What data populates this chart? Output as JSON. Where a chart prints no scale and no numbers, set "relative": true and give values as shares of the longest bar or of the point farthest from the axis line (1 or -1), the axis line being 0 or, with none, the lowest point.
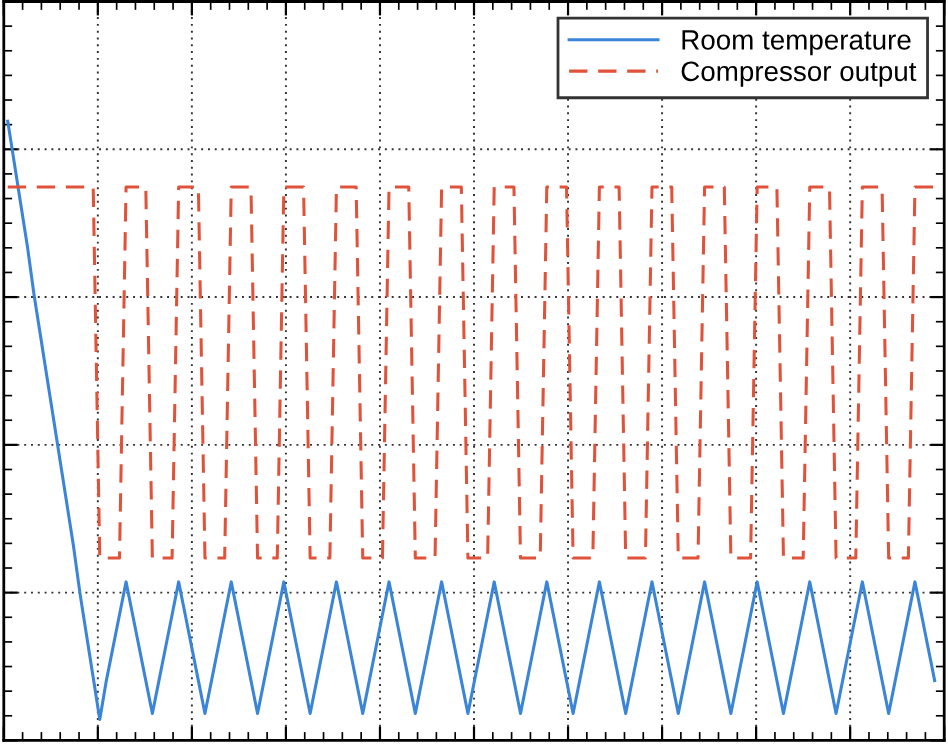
{
  "chart_data": {
    "type": "line",
    "relative": true,
    "tick_labels": false,
    "grid": true,
    "legend": "top right",
    "marker": "none",
    "categories": [
      null,
      null,
      null,
      null,
      null,
      null,
      null,
      null,
      null,
      null,
      null,
      null,
      null,
      null,
      null,
      null,
      null,
      null,
      null,
      null,
      null,
      null,
      null,
      null,
      null,
      null,
      null,
      null,
      null,
      null,
      null,
      null,
      null,
      null,
      null,
      null,
      null,
      null,
      null,
      null,
      null,
      null,
      null,
      null,
      null,
      null,
      null,
      null,
      null,
      null,
      null,
      null,
      null,
      null,
      null,
      null,
      null,
      null,
      null,
      null,
      null,
      null,
      null,
      null,
      null,
      null,
      null,
      null,
      null,
      null,
      null,
      null,
      null,
      null,
      null,
      null,
      null,
      null,
      null,
      null,
      null,
      null,
      null,
      null,
      null,
      null,
      null,
      null,
      null,
      null,
      null,
      null,
      null,
      null,
      null,
      null,
      null,
      null,
      null,
      null,
      null,
      null,
      null,
      null,
      null,
      null,
      null,
      null,
      null,
      null,
      null,
      null,
      null,
      null,
      null,
      null,
      null,
      null,
      null,
      null,
      null,
      null,
      null,
      null,
      null,
      null,
      null,
      null,
      null,
      null,
      null,
      null,
      null,
      null,
      null,
      null,
      null,
      null,
      null,
      null,
      null,
      null
    ],
    "series": [
      {
        "name": "Room temperature",
        "color": "#3a85d8",
        "line_style": "solid",
        "values": [
          1,
          0.93,
          0.86,
          0.79,
          0.71,
          0.64,
          0.57,
          0.5,
          0.43,
          0.36,
          0.29,
          0.21,
          0.14,
          0.07,
          0,
          0.065,
          0.12,
          0.175,
          0.23,
          0.175,
          0.12,
          0.065,
          0.01,
          0.065,
          0.12,
          0.175,
          0.23,
          0.175,
          0.12,
          0.065,
          0.01,
          0.065,
          0.12,
          0.175,
          0.23,
          0.175,
          0.12,
          0.065,
          0.01,
          0.065,
          0.12,
          0.175,
          0.23,
          0.175,
          0.12,
          0.065,
          0.01,
          0.065,
          0.12,
          0.175,
          0.23,
          0.175,
          0.12,
          0.065,
          0.01,
          0.065,
          0.12,
          0.175,
          0.23,
          0.175,
          0.12,
          0.065,
          0.01,
          0.065,
          0.12,
          0.175,
          0.23,
          0.175,
          0.12,
          0.065,
          0.01,
          0.065,
          0.12,
          0.175,
          0.23,
          0.175,
          0.12,
          0.065,
          0.01,
          0.065,
          0.12,
          0.175,
          0.23,
          0.175,
          0.12,
          0.065,
          0.01,
          0.065,
          0.12,
          0.175,
          0.23,
          0.175,
          0.12,
          0.065,
          0.01,
          0.065,
          0.12,
          0.175,
          0.23,
          0.175,
          0.12,
          0.065,
          0.01,
          0.065,
          0.12,
          0.175,
          0.23,
          0.175,
          0.12,
          0.065,
          0.01,
          0.065,
          0.12,
          0.175,
          0.23,
          0.175,
          0.12,
          0.065,
          0.01,
          0.065,
          0.12,
          0.175,
          0.23,
          0.175,
          0.12,
          0.065,
          0.01,
          0.065,
          0.12,
          0.175,
          0.23,
          0.175,
          0.12,
          0.065,
          0.01,
          0.065,
          0.12,
          0.175,
          0.23,
          0.175,
          0.12,
          0.065
        ]
      },
      {
        "name": "Compressor output",
        "color": "#e0533a",
        "line_style": "dashed",
        "values": [
          0.89,
          0.89,
          0.89,
          0.89,
          0.89,
          0.89,
          0.89,
          0.89,
          0.89,
          0.89,
          0.89,
          0.89,
          0.89,
          0.89,
          0.27,
          0.27,
          0.27,
          0.27,
          0.89,
          0.89,
          0.89,
          0.89,
          0.27,
          0.27,
          0.27,
          0.27,
          0.89,
          0.89,
          0.89,
          0.89,
          0.27,
          0.27,
          0.27,
          0.27,
          0.89,
          0.89,
          0.89,
          0.89,
          0.27,
          0.27,
          0.27,
          0.27,
          0.89,
          0.89,
          0.89,
          0.89,
          0.27,
          0.27,
          0.27,
          0.27,
          0.89,
          0.89,
          0.89,
          0.89,
          0.27,
          0.27,
          0.27,
          0.27,
          0.89,
          0.89,
          0.89,
          0.89,
          0.27,
          0.27,
          0.27,
          0.27,
          0.89,
          0.89,
          0.89,
          0.89,
          0.27,
          0.27,
          0.27,
          0.27,
          0.89,
          0.89,
          0.89,
          0.89,
          0.27,
          0.27,
          0.27,
          0.27,
          0.89,
          0.89,
          0.89,
          0.89,
          0.27,
          0.27,
          0.27,
          0.27,
          0.89,
          0.89,
          0.89,
          0.89,
          0.27,
          0.27,
          0.27,
          0.27,
          0.89,
          0.89,
          0.89,
          0.89,
          0.27,
          0.27,
          0.27,
          0.27,
          0.89,
          0.89,
          0.89,
          0.89,
          0.27,
          0.27,
          0.27,
          0.27,
          0.89,
          0.89,
          0.89,
          0.89,
          0.27,
          0.27,
          0.27,
          0.27,
          0.89,
          0.89,
          0.89,
          0.89,
          0.27,
          0.27,
          0.27,
          0.27,
          0.89,
          0.89,
          0.89,
          0.89,
          0.27,
          0.27,
          0.27,
          0.27,
          0.89,
          0.89,
          0.89,
          0.89
        ]
      }
    ]
  }
}
